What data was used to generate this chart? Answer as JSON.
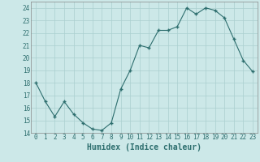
{
  "x": [
    0,
    1,
    2,
    3,
    4,
    5,
    6,
    7,
    8,
    9,
    10,
    11,
    12,
    13,
    14,
    15,
    16,
    17,
    18,
    19,
    20,
    21,
    22,
    23
  ],
  "y": [
    18.0,
    16.5,
    15.3,
    16.5,
    15.5,
    14.8,
    14.3,
    14.2,
    14.8,
    17.5,
    19.0,
    21.0,
    20.8,
    22.2,
    22.2,
    22.5,
    24.0,
    23.5,
    24.0,
    23.8,
    23.2,
    21.5,
    19.8,
    18.9
  ],
  "xlabel": "Humidex (Indice chaleur)",
  "xlim": [
    -0.5,
    23.5
  ],
  "ylim": [
    14,
    24.5
  ],
  "yticks": [
    14,
    15,
    16,
    17,
    18,
    19,
    20,
    21,
    22,
    23,
    24
  ],
  "xticks": [
    0,
    1,
    2,
    3,
    4,
    5,
    6,
    7,
    8,
    9,
    10,
    11,
    12,
    13,
    14,
    15,
    16,
    17,
    18,
    19,
    20,
    21,
    22,
    23
  ],
  "line_color": "#2d6e6e",
  "marker": "+",
  "marker_size": 3.5,
  "bg_color": "#cce8e8",
  "grid_color": "#aacfcf",
  "xlabel_fontsize": 7,
  "tick_fontsize": 5.5
}
